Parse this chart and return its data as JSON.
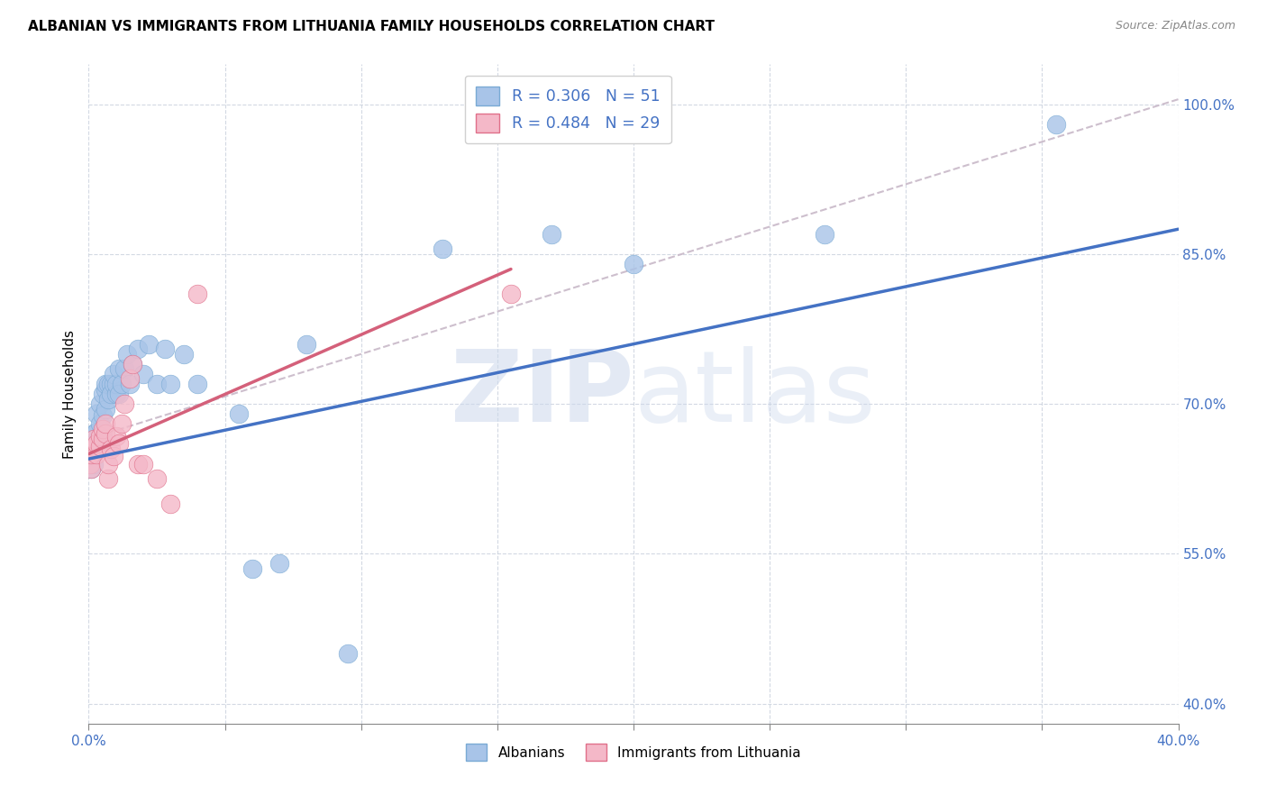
{
  "title": "ALBANIAN VS IMMIGRANTS FROM LITHUANIA FAMILY HOUSEHOLDS CORRELATION CHART",
  "source": "Source: ZipAtlas.com",
  "ylabel": "Family Households",
  "ytick_vals": [
    0.4,
    0.55,
    0.7,
    0.85,
    1.0
  ],
  "ytick_labels": [
    "40.0%",
    "55.0%",
    "70.0%",
    "85.0%",
    "100.0%"
  ],
  "xtick_vals": [
    0.0,
    0.05,
    0.1,
    0.15,
    0.2,
    0.25,
    0.3,
    0.35,
    0.4
  ],
  "xtick_labels": [
    "0.0%",
    "",
    "",
    "",
    "",
    "",
    "",
    "",
    "40.0%"
  ],
  "legend_label1": "R = 0.306   N = 51",
  "legend_label2": "R = 0.484   N = 29",
  "blue_scatter_color": "#a8c4e8",
  "blue_scatter_edge": "#7aaad4",
  "pink_scatter_color": "#f4b8c8",
  "pink_scatter_edge": "#e0708a",
  "blue_line_color": "#4472c4",
  "pink_line_color": "#d4607a",
  "dashed_line_color": "#c8b8c8",
  "axis_label_color": "#4472c4",
  "xmin": 0.0,
  "xmax": 0.4,
  "ymin": 0.38,
  "ymax": 1.04,
  "blue_line": [
    [
      0.0,
      0.4
    ],
    [
      0.645,
      0.875
    ]
  ],
  "pink_line": [
    [
      0.0,
      0.155
    ],
    [
      0.65,
      0.835
    ]
  ],
  "dashed_line": [
    [
      0.0,
      0.4
    ],
    [
      0.665,
      1.005
    ]
  ],
  "alb_x": [
    0.0005,
    0.001,
    0.001,
    0.001,
    0.002,
    0.002,
    0.002,
    0.003,
    0.003,
    0.003,
    0.004,
    0.004,
    0.005,
    0.005,
    0.005,
    0.006,
    0.006,
    0.006,
    0.007,
    0.007,
    0.008,
    0.008,
    0.009,
    0.009,
    0.01,
    0.01,
    0.011,
    0.011,
    0.012,
    0.013,
    0.014,
    0.015,
    0.016,
    0.018,
    0.02,
    0.022,
    0.025,
    0.028,
    0.03,
    0.035,
    0.04,
    0.055,
    0.06,
    0.07,
    0.08,
    0.095,
    0.13,
    0.17,
    0.2,
    0.27,
    0.355
  ],
  "alb_y": [
    0.645,
    0.635,
    0.65,
    0.66,
    0.64,
    0.655,
    0.67,
    0.66,
    0.672,
    0.69,
    0.68,
    0.7,
    0.67,
    0.688,
    0.71,
    0.695,
    0.715,
    0.72,
    0.705,
    0.72,
    0.72,
    0.71,
    0.72,
    0.73,
    0.71,
    0.72,
    0.71,
    0.735,
    0.72,
    0.735,
    0.75,
    0.72,
    0.74,
    0.755,
    0.73,
    0.76,
    0.72,
    0.755,
    0.72,
    0.75,
    0.72,
    0.69,
    0.535,
    0.54,
    0.76,
    0.45,
    0.855,
    0.87,
    0.84,
    0.87,
    0.98
  ],
  "lit_x": [
    0.0005,
    0.001,
    0.001,
    0.002,
    0.002,
    0.003,
    0.003,
    0.004,
    0.004,
    0.005,
    0.005,
    0.006,
    0.006,
    0.007,
    0.007,
    0.008,
    0.009,
    0.01,
    0.011,
    0.012,
    0.013,
    0.015,
    0.016,
    0.018,
    0.02,
    0.025,
    0.03,
    0.04,
    0.155
  ],
  "lit_y": [
    0.64,
    0.635,
    0.65,
    0.655,
    0.665,
    0.65,
    0.66,
    0.658,
    0.668,
    0.665,
    0.675,
    0.67,
    0.68,
    0.625,
    0.64,
    0.655,
    0.648,
    0.668,
    0.66,
    0.68,
    0.7,
    0.725,
    0.74,
    0.64,
    0.64,
    0.625,
    0.6,
    0.81,
    0.81
  ]
}
